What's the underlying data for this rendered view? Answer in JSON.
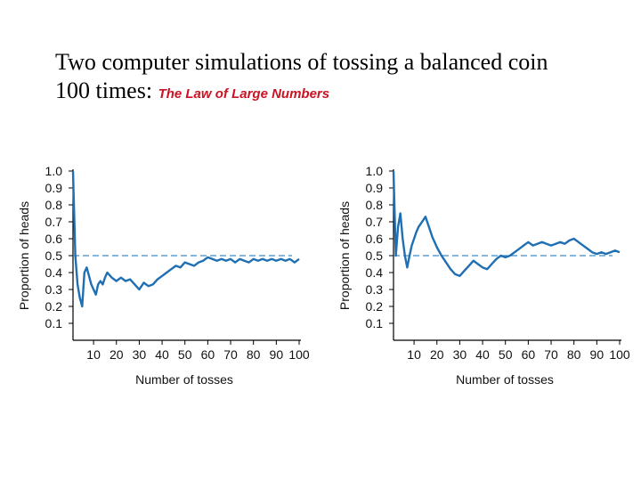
{
  "title": {
    "line1": "Two computer simulations of tossing a balanced coin",
    "line2": "100 times:",
    "subtitle": "The Law of Large Numbers",
    "subtitle_color": "#cc1122"
  },
  "colors": {
    "series": "#1f6fb2",
    "reference": "#3f8ecb",
    "axis": "#000000"
  },
  "chart_data": [
    {
      "type": "line",
      "xlabel": "Number of tosses",
      "ylabel": "Proportion of heads",
      "xlim": [
        1,
        100
      ],
      "ylim": [
        0,
        1.0
      ],
      "xticks": [
        10,
        20,
        30,
        40,
        50,
        60,
        70,
        80,
        90,
        100
      ],
      "yticks": [
        0.1,
        0.2,
        0.3,
        0.4,
        0.5,
        0.6,
        0.7,
        0.8,
        0.9,
        1.0
      ],
      "reference_line": 0.5,
      "series": [
        {
          "x": [
            1,
            2,
            3,
            4,
            5,
            6,
            7,
            8,
            9,
            10,
            11,
            12,
            13,
            14,
            15,
            16,
            18,
            20,
            22,
            24,
            26,
            28,
            30,
            32,
            34,
            36,
            38,
            40,
            42,
            44,
            46,
            48,
            50,
            52,
            54,
            56,
            58,
            60,
            62,
            64,
            66,
            68,
            70,
            72,
            74,
            76,
            78,
            80,
            82,
            84,
            86,
            88,
            90,
            92,
            94,
            96,
            98,
            100
          ],
          "y": [
            1.0,
            0.5,
            0.33,
            0.25,
            0.2,
            0.4,
            0.43,
            0.38,
            0.33,
            0.3,
            0.27,
            0.33,
            0.35,
            0.33,
            0.37,
            0.4,
            0.37,
            0.35,
            0.37,
            0.35,
            0.36,
            0.33,
            0.3,
            0.34,
            0.32,
            0.33,
            0.36,
            0.38,
            0.4,
            0.42,
            0.44,
            0.43,
            0.46,
            0.45,
            0.44,
            0.46,
            0.47,
            0.49,
            0.48,
            0.47,
            0.48,
            0.47,
            0.48,
            0.46,
            0.48,
            0.47,
            0.46,
            0.48,
            0.47,
            0.48,
            0.47,
            0.48,
            0.47,
            0.48,
            0.47,
            0.48,
            0.46,
            0.48
          ]
        }
      ]
    },
    {
      "type": "line",
      "xlabel": "Number of tosses",
      "ylabel": "Proportion of heads",
      "xlim": [
        1,
        100
      ],
      "ylim": [
        0,
        1.0
      ],
      "xticks": [
        10,
        20,
        30,
        40,
        50,
        60,
        70,
        80,
        90,
        100
      ],
      "yticks": [
        0.1,
        0.2,
        0.3,
        0.4,
        0.5,
        0.6,
        0.7,
        0.8,
        0.9,
        1.0
      ],
      "reference_line": 0.5,
      "series": [
        {
          "x": [
            1,
            2,
            3,
            4,
            5,
            6,
            7,
            8,
            9,
            10,
            11,
            12,
            13,
            14,
            15,
            16,
            17,
            18,
            19,
            20,
            22,
            24,
            26,
            28,
            30,
            32,
            34,
            36,
            38,
            40,
            42,
            44,
            46,
            48,
            50,
            52,
            54,
            56,
            58,
            60,
            62,
            64,
            66,
            68,
            70,
            72,
            74,
            76,
            78,
            80,
            82,
            84,
            86,
            88,
            90,
            92,
            94,
            96,
            98,
            100
          ],
          "y": [
            1.0,
            0.5,
            0.67,
            0.75,
            0.6,
            0.5,
            0.43,
            0.5,
            0.56,
            0.6,
            0.64,
            0.67,
            0.69,
            0.71,
            0.73,
            0.69,
            0.65,
            0.61,
            0.58,
            0.55,
            0.5,
            0.46,
            0.42,
            0.39,
            0.38,
            0.41,
            0.44,
            0.47,
            0.45,
            0.43,
            0.42,
            0.45,
            0.48,
            0.5,
            0.49,
            0.5,
            0.52,
            0.54,
            0.56,
            0.58,
            0.56,
            0.57,
            0.58,
            0.57,
            0.56,
            0.57,
            0.58,
            0.57,
            0.59,
            0.6,
            0.58,
            0.56,
            0.54,
            0.52,
            0.51,
            0.52,
            0.51,
            0.52,
            0.53,
            0.52
          ]
        }
      ]
    }
  ]
}
